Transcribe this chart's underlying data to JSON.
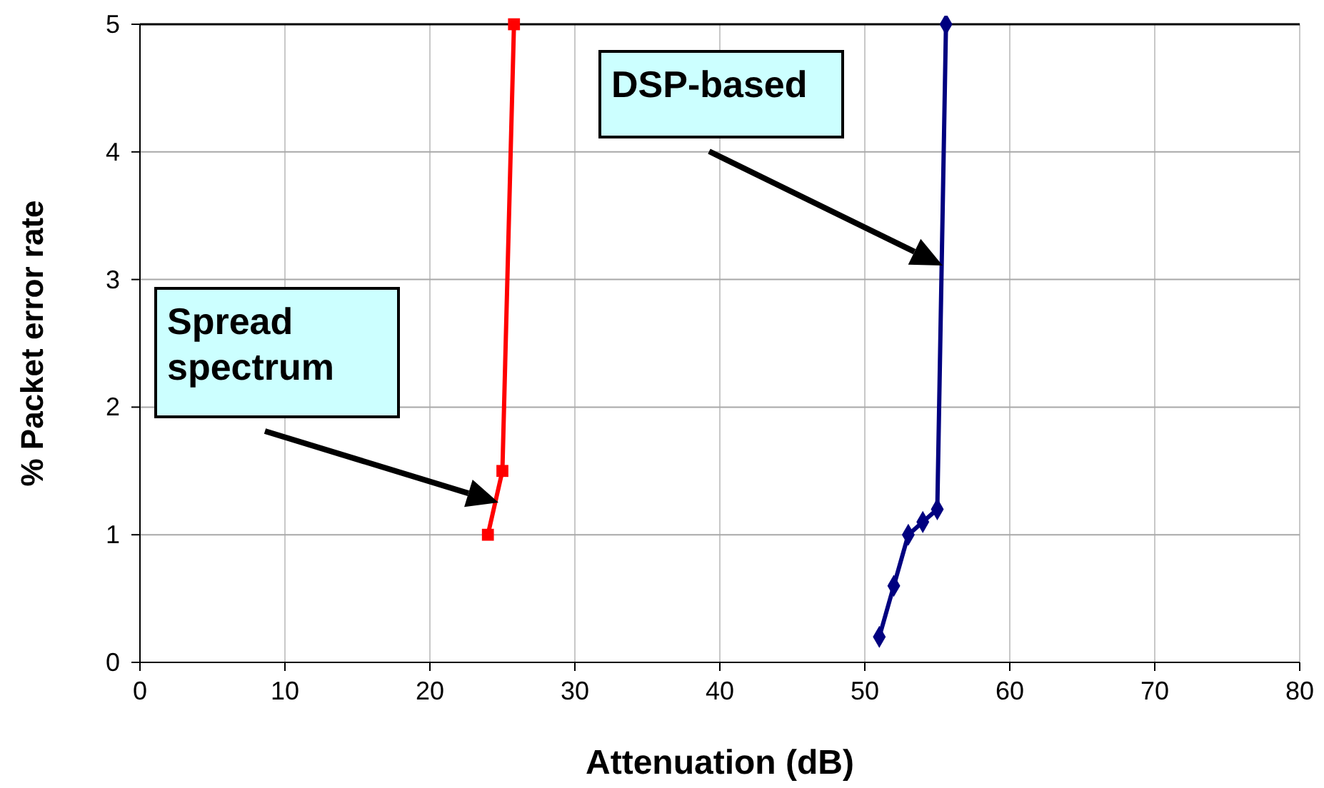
{
  "chart_data": {
    "type": "line",
    "xlabel": "Attenuation (dB)",
    "ylabel": "% Packet error rate",
    "series": [
      {
        "color": "#ff0000",
        "marker": "square",
        "x": [
          24,
          25,
          25.8
        ],
        "values": [
          1,
          1.5,
          5
        ]
      },
      {
        "color": "#000080",
        "marker": "diamond",
        "x": [
          51,
          52,
          53,
          54,
          55,
          55.6
        ],
        "values": [
          0.2,
          0.6,
          1.0,
          1.1,
          1.2,
          5
        ]
      }
    ],
    "xlim": [
      0,
      80
    ],
    "xticks": [
      0,
      10,
      20,
      30,
      40,
      50,
      60,
      70,
      80
    ],
    "ylim": [
      0,
      5
    ],
    "yticks": [
      0,
      1,
      2,
      3,
      4,
      5
    ],
    "grid": true,
    "annotations": [
      "Spread spectrum",
      "DSP-based"
    ]
  }
}
